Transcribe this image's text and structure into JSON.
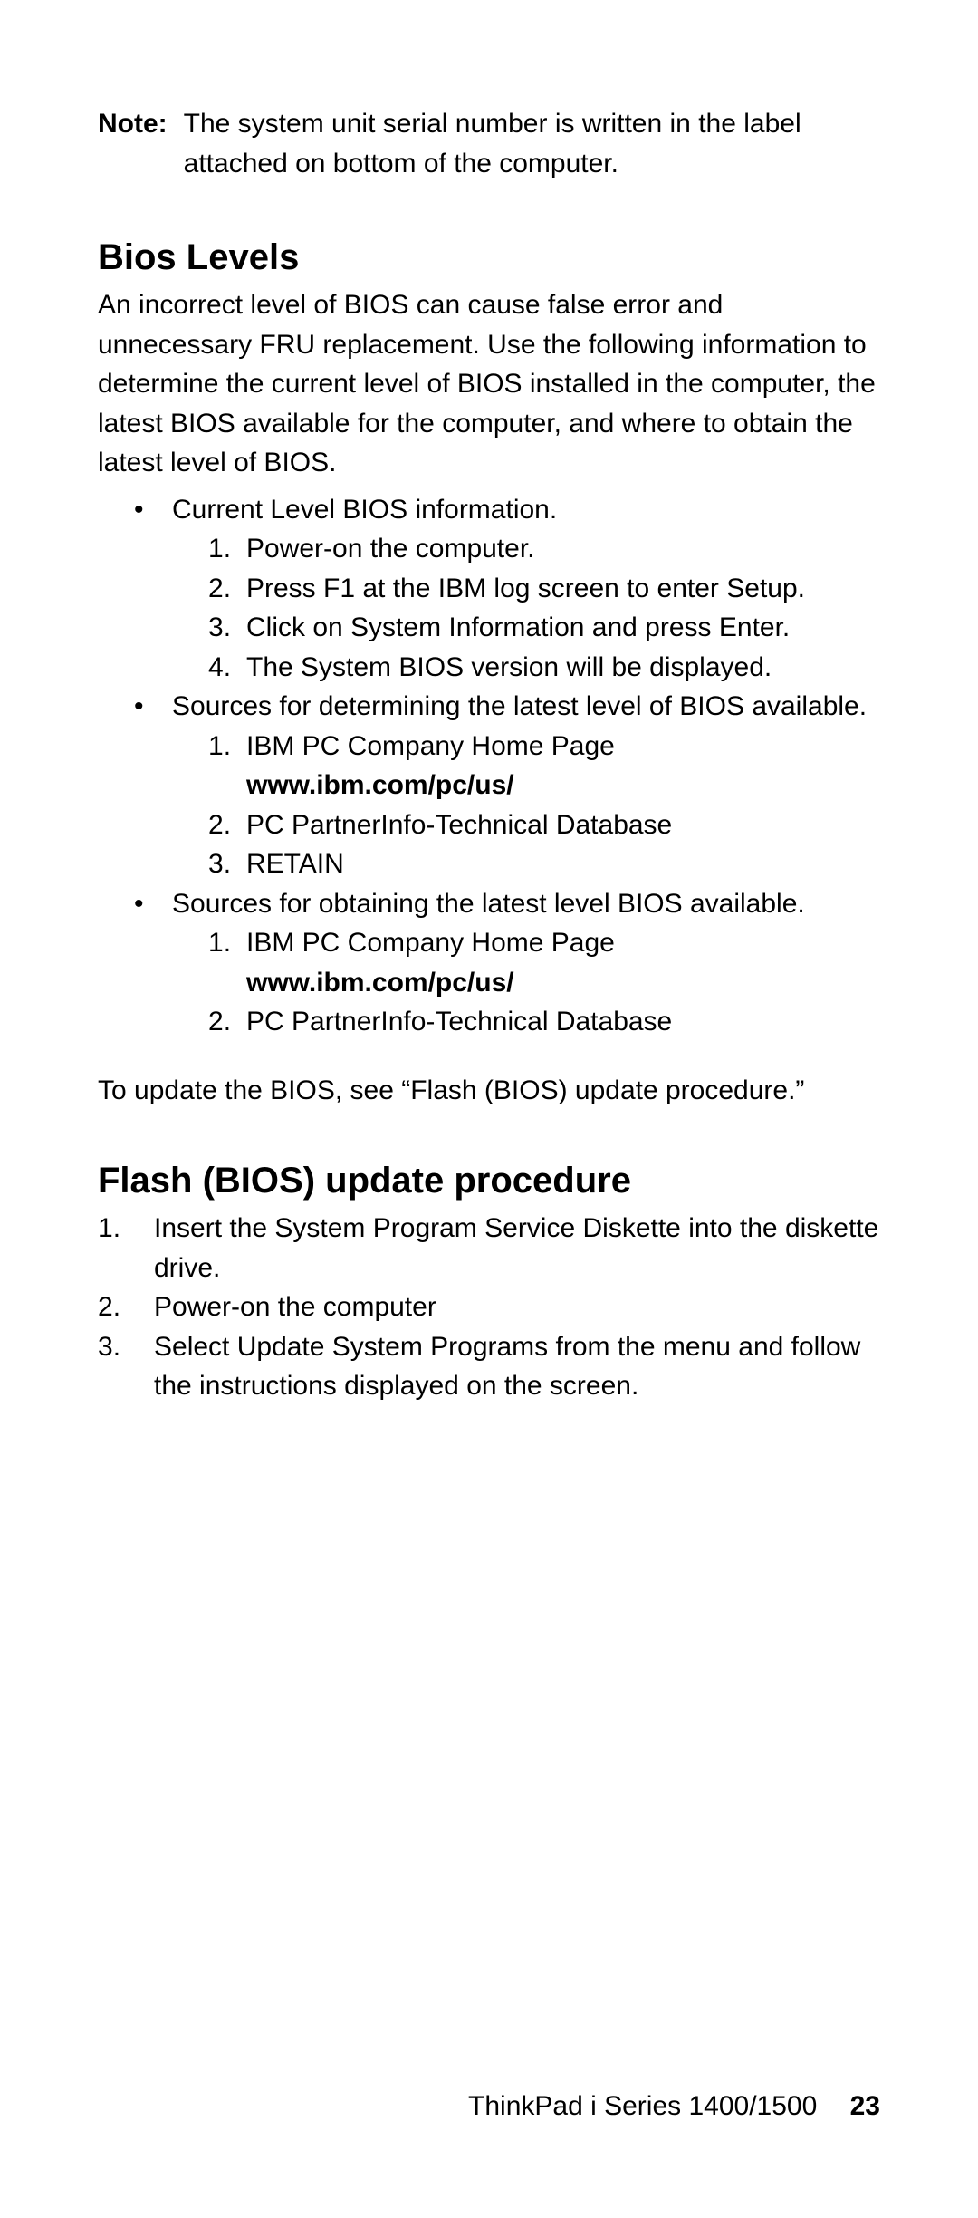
{
  "note": {
    "label": "Note:",
    "text": "The system unit serial number is written in the label attached on bottom of the computer."
  },
  "section1": {
    "heading": "Bios Levels",
    "intro": "An incorrect level of BIOS can cause false error and unnecessary FRU replacement.  Use the following informa­tion to determine the current level of BIOS installed in the computer, the latest BIOS available for the computer, and where to obtain the latest level of BIOS.",
    "b1": {
      "lead": "Current Level BIOS information.",
      "i1": "Power-on the computer.",
      "i2": "Press F1 at the IBM log screen to enter Setup.",
      "i3": "Click on System Information and press Enter.",
      "i4": "The System BIOS version will be displayed."
    },
    "b2": {
      "lead": "Sources for determining the latest level of BIOS avail­able.",
      "i1a": "IBM PC Company Home Page",
      "i1b": "www.ibm.com/pc/us/",
      "i2": "PC PartnerInfo-Technical Database",
      "i3": "RETAIN"
    },
    "b3": {
      "lead": "Sources for obtaining the latest level BIOS available.",
      "i1a": "IBM PC Company Home Page",
      "i1b": "www.ibm.com/pc/us/",
      "i2": "PC PartnerInfo-Technical Database"
    },
    "outro": "To update the BIOS, see “Flash (BIOS) update procedure.”"
  },
  "section2": {
    "heading": "Flash (BIOS) update procedure",
    "i1": "Insert the System Program Service Diskette into the diskette drive.",
    "i2": "Power-on the computer",
    "i3": "Select Update System Programs from the menu and follow the instructions displayed on the screen."
  },
  "footer": {
    "title": "ThinkPad i Series 1400/1500",
    "page": "23"
  }
}
